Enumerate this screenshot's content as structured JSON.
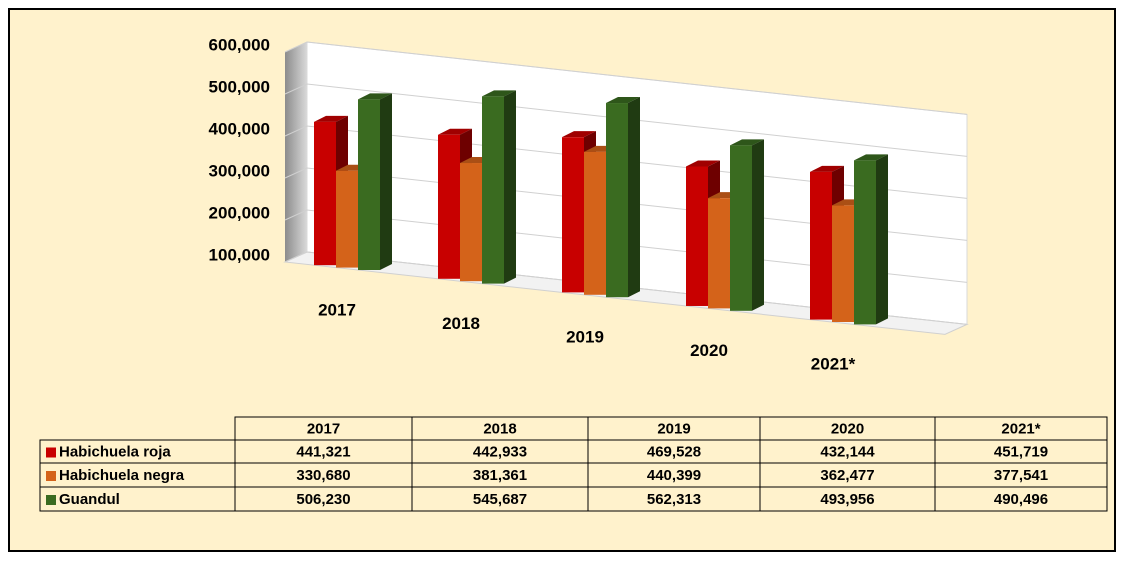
{
  "chart_data": {
    "type": "bar3d",
    "categories": [
      "2017",
      "2018",
      "2019",
      "2020",
      "2021*"
    ],
    "series": [
      {
        "name": "Habichuela roja",
        "color": "#c80000",
        "values": [
          441321,
          442933,
          469528,
          432144,
          451719
        ],
        "value_labels": [
          "441,321",
          "442,933",
          "469,528",
          "432,144",
          "451,719"
        ]
      },
      {
        "name": "Habichuela negra",
        "color": "#d4631a",
        "values": [
          330680,
          381361,
          440399,
          362477,
          377541
        ],
        "value_labels": [
          "330,680",
          "381,361",
          "440,399",
          "362,477",
          "377,541"
        ]
      },
      {
        "name": "Guandul",
        "color": "#3a6b20",
        "values": [
          506230,
          545687,
          562313,
          493956,
          490496
        ],
        "value_labels": [
          "506,230",
          "545,687",
          "562,313",
          "493,956",
          "490,496"
        ]
      }
    ],
    "ylim": [
      100000,
      600000
    ],
    "yticks": [
      {
        "value": 100000,
        "label": "100,000"
      },
      {
        "value": 200000,
        "label": "200,000"
      },
      {
        "value": 300000,
        "label": "300,000"
      },
      {
        "value": 400000,
        "label": "400,000"
      },
      {
        "value": 500000,
        "label": "500,000"
      },
      {
        "value": 600000,
        "label": "600,000"
      }
    ],
    "grid": true
  }
}
